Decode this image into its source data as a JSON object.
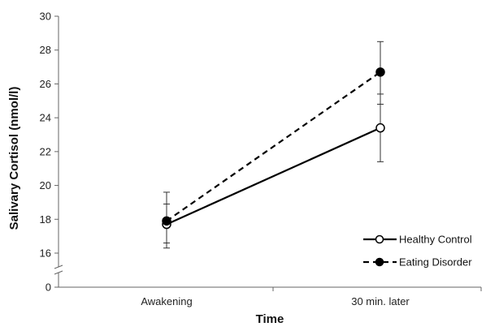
{
  "chart_data": {
    "type": "line",
    "xlabel": "Time",
    "ylabel": "Salivary Cortisol (nmol/l)",
    "categories": [
      "Awakening",
      "30 min. later"
    ],
    "ylim": [
      0,
      30
    ],
    "yaxis_break": [
      0,
      16
    ],
    "yticks": [
      0,
      16,
      18,
      20,
      22,
      24,
      26,
      28,
      30
    ],
    "grid": false,
    "legend_position": "bottom-right",
    "series": [
      {
        "name": "Healthy Control",
        "values": [
          17.7,
          23.4
        ],
        "error": [
          [
            16.3,
            18.9
          ],
          [
            21.4,
            25.4
          ]
        ],
        "line_style": "solid",
        "marker": "open-circle",
        "color": "#000000"
      },
      {
        "name": "Eating Disorder",
        "values": [
          17.9,
          26.7
        ],
        "error": [
          [
            16.6,
            19.6
          ],
          [
            24.8,
            28.5
          ]
        ],
        "line_style": "dashed",
        "marker": "filled-circle",
        "color": "#000000"
      }
    ]
  }
}
